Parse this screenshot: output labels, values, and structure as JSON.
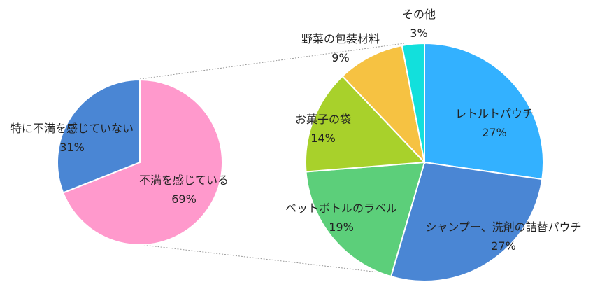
{
  "chart_data": [
    {
      "type": "pie",
      "slices": [
        {
          "label": "不満を感じている",
          "value": 69,
          "value_label": "69%",
          "color": "#ff99cc"
        },
        {
          "label": "特に不満を感じていない",
          "value": 31,
          "value_label": "31%",
          "color": "#4a86d4"
        }
      ]
    },
    {
      "type": "pie",
      "slices": [
        {
          "label": "レトルトパウチ",
          "value": 27,
          "value_label": "27%",
          "color": "#33b1ff"
        },
        {
          "label": "シャンプー、洗剤の詰替パウチ",
          "value": 27,
          "value_label": "27%",
          "color": "#4a86d4"
        },
        {
          "label": "ペットボトルのラベル",
          "value": 19,
          "value_label": "19%",
          "color": "#5ccf7a"
        },
        {
          "label": "お菓子の袋",
          "value": 14,
          "value_label": "14%",
          "color": "#a8d12b"
        },
        {
          "label": "野菜の包装材料",
          "value": 9,
          "value_label": "9%",
          "color": "#f6c242"
        },
        {
          "label": "その他",
          "value": 3,
          "value_label": "3%",
          "color": "#12e0dc"
        }
      ]
    }
  ]
}
